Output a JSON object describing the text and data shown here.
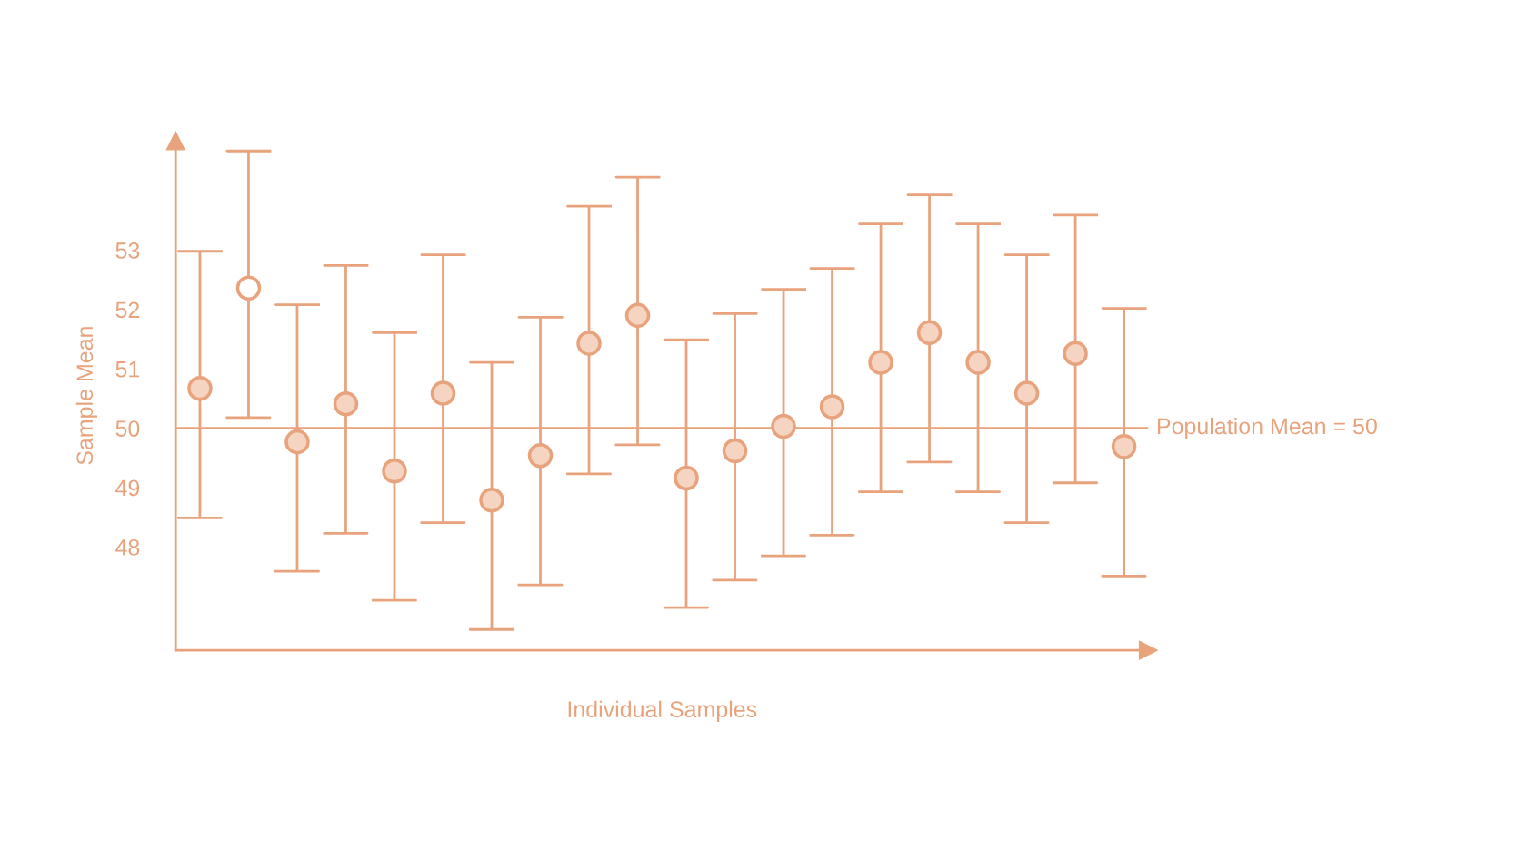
{
  "chart_data": {
    "type": "scatter",
    "xlabel": "Individual Samples",
    "ylabel": "Sample Mean",
    "categories": [
      null,
      null,
      null,
      null,
      null,
      null,
      null,
      null,
      null,
      null,
      null,
      null,
      null,
      null,
      null,
      null,
      null,
      null,
      null,
      null
    ],
    "series": [
      {
        "color": "#e8a37d",
        "marker": "circle",
        "colors": [
          "#f6d4c2",
          "#ffffff",
          "#f6d4c2",
          "#f6d4c2",
          "#f6d4c2",
          "#f6d4c2",
          "#f6d4c2",
          "#f6d4c2",
          "#f6d4c2",
          "#f6d4c2",
          "#f6d4c2",
          "#f6d4c2",
          "#f6d4c2",
          "#f6d4c2",
          "#f6d4c2",
          "#f6d4c2",
          "#f6d4c2",
          "#f6d4c2",
          "#f6d4c2",
          "#f6d4c2"
        ],
        "values": [
          50.67,
          52.36,
          49.77,
          50.41,
          49.28,
          50.59,
          48.79,
          49.54,
          51.43,
          51.9,
          49.16,
          49.62,
          50.03,
          50.36,
          51.11,
          51.61,
          51.11,
          50.59,
          51.26,
          49.69
        ],
        "errors": [
          [
            48.49,
            52.98
          ],
          [
            50.18,
            54.67
          ],
          [
            47.59,
            52.08
          ],
          [
            48.23,
            52.74
          ],
          [
            47.1,
            51.61
          ],
          [
            48.41,
            52.92
          ],
          [
            46.61,
            51.11
          ],
          [
            47.36,
            51.87
          ],
          [
            49.23,
            53.74
          ],
          [
            49.72,
            54.23
          ],
          [
            46.98,
            51.49
          ],
          [
            47.44,
            51.93
          ],
          [
            47.85,
            52.34
          ],
          [
            48.2,
            52.69
          ],
          [
            48.93,
            53.44
          ],
          [
            49.43,
            53.93
          ],
          [
            48.93,
            53.44
          ],
          [
            48.41,
            52.92
          ],
          [
            49.08,
            53.59
          ],
          [
            47.51,
            52.02
          ]
        ]
      }
    ],
    "ylim": [
      46.26,
      54.84
    ],
    "yticks": [
      48,
      49,
      50,
      51,
      52,
      53
    ],
    "tick_labels": "y",
    "ref_lines": [
      {
        "axis": "y",
        "value": 50,
        "label": "Population Mean = 50",
        "color": "#e8a37d"
      }
    ],
    "grid": false,
    "legend": false
  }
}
